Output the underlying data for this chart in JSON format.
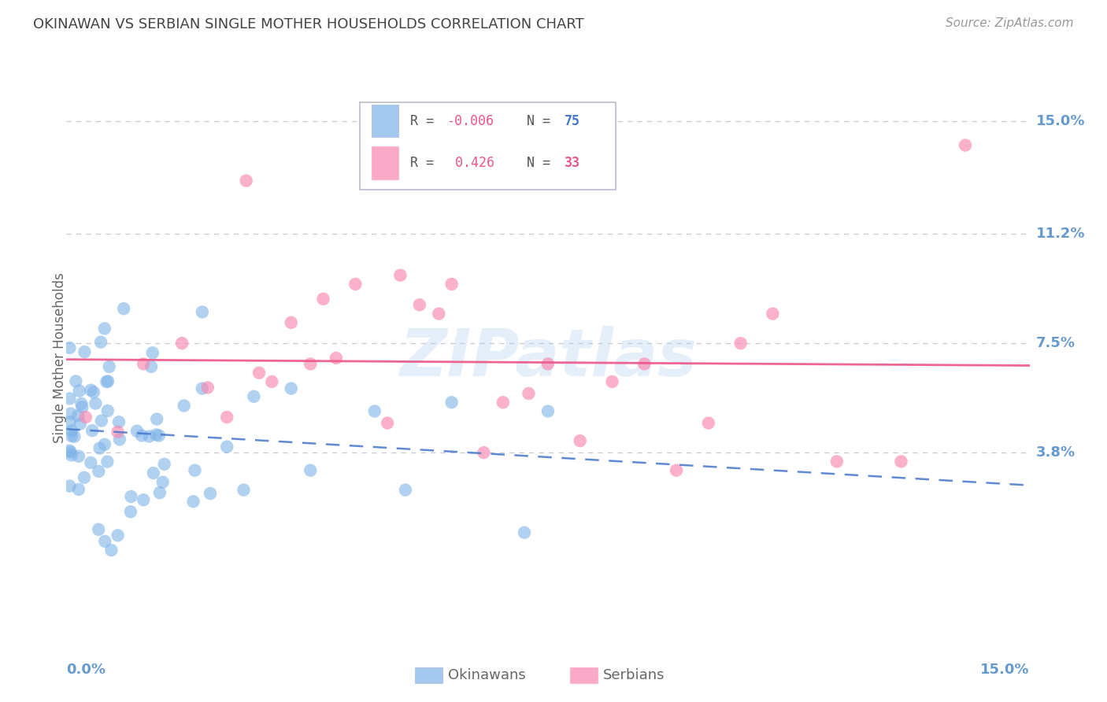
{
  "title": "OKINAWAN VS SERBIAN SINGLE MOTHER HOUSEHOLDS CORRELATION CHART",
  "source": "Source: ZipAtlas.com",
  "ylabel": "Single Mother Households",
  "ytick_values": [
    0.038,
    0.075,
    0.112,
    0.15
  ],
  "ytick_labels": [
    "3.8%",
    "7.5%",
    "11.2%",
    "15.0%"
  ],
  "xmin": 0.0,
  "xmax": 0.15,
  "ymin": -0.025,
  "ymax": 0.165,
  "watermark": "ZIPatlas",
  "blue_color": "#7EB3E8",
  "pink_color": "#F987B0",
  "blue_line_color": "#4477CC",
  "pink_line_color": "#EE5588",
  "grid_color": "#BBBBCC",
  "background_color": "#FFFFFF",
  "axis_label_color": "#6699CC",
  "title_color": "#444444",
  "source_color": "#999999"
}
